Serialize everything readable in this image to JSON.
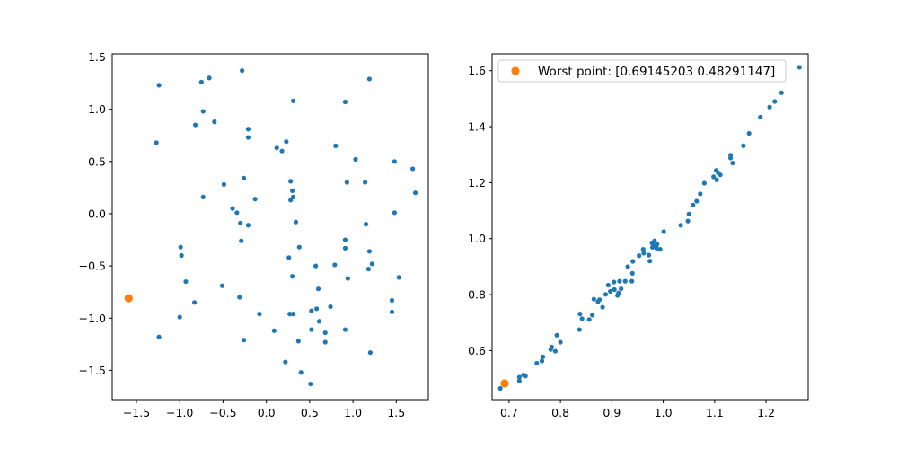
{
  "colors": {
    "series_blue": "#1f77b4",
    "series_orange": "#ff7f0e",
    "axis": "#000000",
    "legend_border": "#cccccc"
  },
  "chart_data": [
    {
      "type": "scatter",
      "xlim": [
        -1.78,
        1.87
      ],
      "ylim": [
        -1.78,
        1.53
      ],
      "xticks": [
        -1.5,
        -1.0,
        -0.5,
        0.0,
        0.5,
        1.0,
        1.5
      ],
      "xtick_labels": [
        "−1.5",
        "−1.0",
        "−0.5",
        "0.0",
        "0.5",
        "1.0",
        "1.5"
      ],
      "yticks": [
        -1.5,
        -1.0,
        -0.5,
        0.0,
        0.5,
        1.0,
        1.5
      ],
      "ytick_labels": [
        "−1.5",
        "−1.0",
        "−0.5",
        "0.0",
        "0.5",
        "1.0",
        "1.5"
      ],
      "grid": false,
      "series": [
        {
          "color": "#1f77b4",
          "points": [
            [
              -1.24,
              1.23
            ],
            [
              -0.28,
              1.37
            ],
            [
              -0.75,
              1.26
            ],
            [
              -0.66,
              1.3
            ],
            [
              1.19,
              1.29
            ],
            [
              0.31,
              1.08
            ],
            [
              0.91,
              1.07
            ],
            [
              -0.73,
              0.98
            ],
            [
              -0.6,
              0.88
            ],
            [
              -0.82,
              0.85
            ],
            [
              -0.21,
              0.81
            ],
            [
              -0.21,
              0.73
            ],
            [
              -1.27,
              0.68
            ],
            [
              0.23,
              0.69
            ],
            [
              0.12,
              0.63
            ],
            [
              0.18,
              0.6
            ],
            [
              0.8,
              0.65
            ],
            [
              1.03,
              0.52
            ],
            [
              1.48,
              0.5
            ],
            [
              1.69,
              0.43
            ],
            [
              1.72,
              0.2
            ],
            [
              -0.26,
              0.34
            ],
            [
              0.28,
              0.31
            ],
            [
              0.3,
              0.22
            ],
            [
              0.31,
              0.16
            ],
            [
              0.28,
              0.13
            ],
            [
              0.93,
              0.3
            ],
            [
              1.14,
              0.3
            ],
            [
              -0.49,
              0.28
            ],
            [
              -0.13,
              0.14
            ],
            [
              -0.73,
              0.16
            ],
            [
              -0.39,
              0.05
            ],
            [
              -0.34,
              0.01
            ],
            [
              1.48,
              0.01
            ],
            [
              -0.3,
              -0.09
            ],
            [
              -0.21,
              -0.11
            ],
            [
              0.34,
              -0.08
            ],
            [
              1.15,
              -0.1
            ],
            [
              -0.29,
              -0.26
            ],
            [
              0.91,
              -0.25
            ],
            [
              -0.99,
              -0.32
            ],
            [
              -0.98,
              -0.4
            ],
            [
              0.38,
              -0.32
            ],
            [
              0.91,
              -0.33
            ],
            [
              1.19,
              -0.36
            ],
            [
              0.26,
              -0.42
            ],
            [
              1.22,
              -0.48
            ],
            [
              0.79,
              -0.49
            ],
            [
              1.18,
              -0.53
            ],
            [
              0.57,
              -0.5
            ],
            [
              0.3,
              -0.6
            ],
            [
              0.94,
              -0.62
            ],
            [
              1.53,
              -0.61
            ],
            [
              -0.93,
              -0.65
            ],
            [
              -0.51,
              -0.69
            ],
            [
              0.6,
              -0.72
            ],
            [
              -0.31,
              -0.8
            ],
            [
              1.45,
              -0.83
            ],
            [
              -0.83,
              -0.85
            ],
            [
              0.74,
              -0.89
            ],
            [
              0.52,
              -0.93
            ],
            [
              0.58,
              -0.91
            ],
            [
              1.45,
              -0.94
            ],
            [
              0.27,
              -0.96
            ],
            [
              0.31,
              -0.96
            ],
            [
              -0.08,
              -0.96
            ],
            [
              -1.0,
              -0.99
            ],
            [
              0.61,
              -1.03
            ],
            [
              0.91,
              -1.11
            ],
            [
              0.52,
              -1.11
            ],
            [
              0.68,
              -1.14
            ],
            [
              0.09,
              -1.12
            ],
            [
              -1.24,
              -1.18
            ],
            [
              -0.26,
              -1.21
            ],
            [
              0.37,
              -1.22
            ],
            [
              0.68,
              -1.23
            ],
            [
              1.2,
              -1.33
            ],
            [
              0.22,
              -1.42
            ],
            [
              0.4,
              -1.52
            ],
            [
              0.51,
              -1.63
            ]
          ]
        },
        {
          "color": "#ff7f0e",
          "points": [
            [
              -1.59,
              -0.81
            ]
          ]
        }
      ]
    },
    {
      "type": "scatter",
      "xlim": [
        0.667,
        1.282
      ],
      "ylim": [
        0.425,
        1.66
      ],
      "xticks": [
        0.7,
        0.8,
        0.9,
        1.0,
        1.1,
        1.2
      ],
      "xtick_labels": [
        "0.7",
        "0.8",
        "0.9",
        "1.0",
        "1.1",
        "1.2"
      ],
      "yticks": [
        0.6,
        0.8,
        1.0,
        1.2,
        1.4,
        1.6
      ],
      "ytick_labels": [
        "0.6",
        "0.8",
        "1.0",
        "1.2",
        "1.4",
        "1.6"
      ],
      "grid": false,
      "legend": {
        "placement": "upper-left",
        "entries": [
          "Worst point: [0.69145203 0.48291147]"
        ]
      },
      "series": [
        {
          "color": "#1f77b4",
          "points": [
            [
              0.683,
              0.465
            ],
            [
              0.72,
              0.492
            ],
            [
              0.72,
              0.505
            ],
            [
              0.728,
              0.513
            ],
            [
              0.732,
              0.509
            ],
            [
              0.754,
              0.555
            ],
            [
              0.764,
              0.563
            ],
            [
              0.766,
              0.578
            ],
            [
              0.781,
              0.604
            ],
            [
              0.783,
              0.613
            ],
            [
              0.79,
              0.598
            ],
            [
              0.793,
              0.655
            ],
            [
              0.8,
              0.63
            ],
            [
              0.837,
              0.675
            ],
            [
              0.838,
              0.731
            ],
            [
              0.842,
              0.714
            ],
            [
              0.856,
              0.711
            ],
            [
              0.862,
              0.727
            ],
            [
              0.865,
              0.784
            ],
            [
              0.873,
              0.775
            ],
            [
              0.876,
              0.782
            ],
            [
              0.882,
              0.755
            ],
            [
              0.888,
              0.801
            ],
            [
              0.893,
              0.834
            ],
            [
              0.897,
              0.812
            ],
            [
              0.905,
              0.818
            ],
            [
              0.904,
              0.845
            ],
            [
              0.911,
              0.797
            ],
            [
              0.913,
              0.806
            ],
            [
              0.915,
              0.848
            ],
            [
              0.918,
              0.821
            ],
            [
              0.926,
              0.848
            ],
            [
              0.931,
              0.9
            ],
            [
              0.94,
              0.876
            ],
            [
              0.939,
              0.848
            ],
            [
              0.941,
              0.919
            ],
            [
              0.953,
              0.939
            ],
            [
              0.961,
              0.962
            ],
            [
              0.962,
              0.948
            ],
            [
              0.972,
              0.941
            ],
            [
              0.974,
              0.92
            ],
            [
              0.978,
              0.985
            ],
            [
              0.979,
              0.969
            ],
            [
              0.981,
              0.976
            ],
            [
              0.983,
              0.992
            ],
            [
              0.986,
              0.975
            ],
            [
              0.987,
              0.966
            ],
            [
              0.988,
              0.98
            ],
            [
              0.994,
              0.962
            ],
            [
              1.001,
              1.025
            ],
            [
              1.034,
              1.048
            ],
            [
              1.048,
              1.063
            ],
            [
              1.05,
              1.088
            ],
            [
              1.058,
              1.12
            ],
            [
              1.065,
              1.134
            ],
            [
              1.072,
              1.16
            ],
            [
              1.08,
              1.198
            ],
            [
              1.098,
              1.221
            ],
            [
              1.103,
              1.244
            ],
            [
              1.104,
              1.21
            ],
            [
              1.107,
              1.235
            ],
            [
              1.111,
              1.228
            ],
            [
              1.131,
              1.298
            ],
            [
              1.131,
              1.288
            ],
            [
              1.135,
              1.27
            ],
            [
              1.156,
              1.332
            ],
            [
              1.167,
              1.376
            ],
            [
              1.189,
              1.434
            ],
            [
              1.207,
              1.47
            ],
            [
              1.217,
              1.49
            ],
            [
              1.23,
              1.521
            ],
            [
              1.265,
              1.612
            ]
          ]
        },
        {
          "color": "#ff7f0e",
          "name": "Worst point: [0.69145203 0.48291147]",
          "points": [
            [
              0.69145203,
              0.48291147
            ]
          ]
        }
      ]
    }
  ]
}
